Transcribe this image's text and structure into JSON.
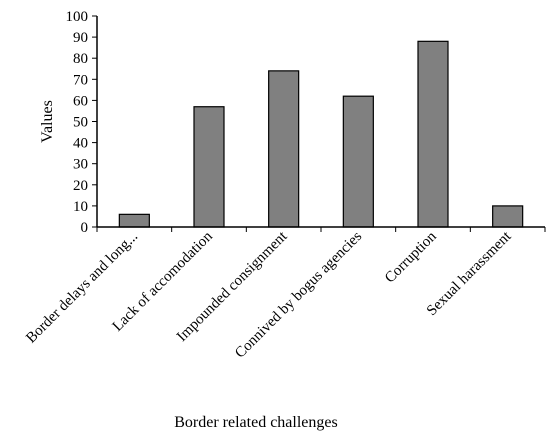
{
  "chart_data": {
    "type": "bar",
    "title": "",
    "xlabel": "Border related challenges",
    "ylabel": "Values",
    "ylim": [
      0,
      100
    ],
    "yticks": [
      0,
      10,
      20,
      30,
      40,
      50,
      60,
      70,
      80,
      90,
      100
    ],
    "categories": [
      "Border delays and long...",
      "Lack of accomodation",
      "Impounded consignment",
      "Connived by bogus agencies",
      "Corruption",
      "Sexual harassment"
    ],
    "values": [
      6,
      57,
      74,
      62,
      88,
      10
    ],
    "grid": false,
    "legend": "none",
    "bar_color": "#808080",
    "bar_edge_color": "#000000"
  }
}
